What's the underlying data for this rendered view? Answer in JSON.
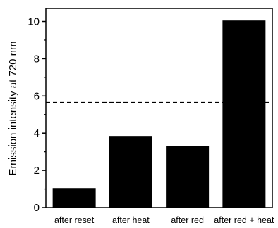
{
  "chart_data": {
    "type": "bar",
    "title": "",
    "xlabel": "",
    "ylabel": "Emission intensity at 720 nm",
    "categories": [
      "after reset",
      "after heat",
      "after red",
      "after red + heat"
    ],
    "values": [
      1.05,
      3.85,
      3.3,
      10.05
    ],
    "ylim": [
      0,
      10.7
    ],
    "yticks": [
      "0",
      "2",
      "4",
      "6",
      "8",
      "10"
    ],
    "reference_line": {
      "y": 5.65,
      "style": "dashed"
    },
    "bar_color": "#000000",
    "grid": false,
    "legend": "none"
  }
}
